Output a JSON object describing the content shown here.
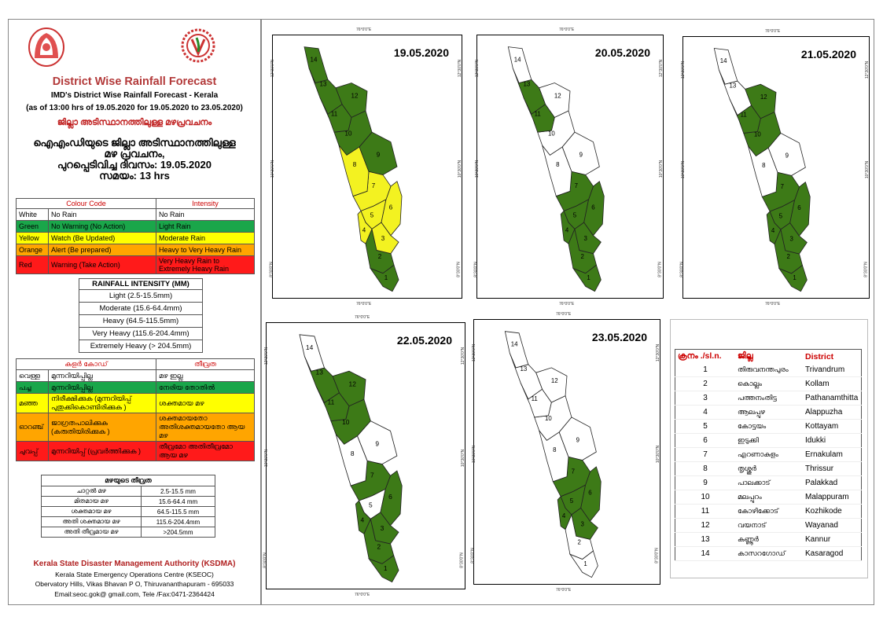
{
  "header": {
    "title": "District Wise Rainfall Forecast",
    "sub1": "IMD's District Wise Rainfall Forecast - Kerala",
    "sub2": "(as of 13:00 hrs of 19.05.2020  for 19.05.2020 to 23.05.2020)",
    "ml_title": "ജില്ലാ അടിസ്ഥാനത്തിലുള്ള മഴപ്രവചനം",
    "ml_line1": "ഐഎംഡിയുടെ ജില്ലാ  അടിസ്ഥാനത്തിലുള്ള",
    "ml_line2": "മഴ പ്രവചനം,",
    "ml_line3": "പുറപ്പെടിവിച്ച  ദിവസം: 19.05.2020",
    "ml_line4": "സമയം: 13 hrs"
  },
  "colour_code": {
    "head_code": "Colour Code",
    "head_intensity": "Intensity",
    "rows": [
      {
        "c": "White",
        "code": "No Rain",
        "intensity": "No Rain",
        "bg": "#ffffff"
      },
      {
        "c": "Green",
        "code": "No Warning (No Action)",
        "intensity": "Light Rain",
        "bg": "#1aa64a"
      },
      {
        "c": "Yellow",
        "code": "Watch (Be Updated)",
        "intensity": "Moderate Rain",
        "bg": "#ffff00"
      },
      {
        "c": "Orange",
        "code": "Alert (Be prepared)",
        "intensity": "Heavy to Very Heavy Rain",
        "bg": "#ffa500"
      },
      {
        "c": "Red",
        "code": "Warning (Take Action)",
        "intensity": "Very Heavy Rain to Extremely Heavy Rain",
        "bg": "#ff1a1a"
      }
    ]
  },
  "rain_intensity": {
    "head": "RAINFALL INTENSITY (MM)",
    "rows": [
      "Light (2.5-15.5mm)",
      "Moderate (15.6-64.4mm)",
      "Heavy (64.5-115.5mm)",
      "Very Heavy (115.6-204.4mm)",
      "Extremely Heavy (> 204.5mm)"
    ]
  },
  "ml_colour_code": {
    "head_code": "കളർ കോഡ്",
    "head_intensity": "തീവ്രത",
    "rows": [
      {
        "c": "വെള്ള",
        "code": "മുന്നറിയിപ്പില്ല",
        "intensity": "മഴ ഇല്ല",
        "bg": "#ffffff"
      },
      {
        "c": "പച്ച",
        "code": "മുന്നറിയിപ്പില്ല",
        "intensity": "നേരിയ തോതിൽ",
        "bg": "#1aa64a"
      },
      {
        "c": "മഞ്ഞ",
        "code": "നിരീക്ഷിക്കുക (മുന്നറിയിപ്പ് പുതുക്കികൊണ്ടിരിക്കുക )",
        "intensity": "ശക്തമായ മഴ",
        "bg": "#ffff00"
      },
      {
        "c": "ഓറഞ്ച്",
        "code": "ജാഗ്രതപാലിക്കുക (കരുതിയിരിക്കുക )",
        "intensity": "ശക്തമായതോ അതിശക്തമായതോ ആയ മഴ",
        "bg": "#ffa500"
      },
      {
        "c": "ചുവപ്പ്",
        "code": "മുന്നറിയിപ്പ് (പ്രവർത്തിക്കുക )",
        "intensity": "തീവ്രമോ അതിതീവ്രമോ ആയ മഴ",
        "bg": "#ff1a1a"
      }
    ]
  },
  "ml_intensity": {
    "head": "മഴയുടെ  തീവ്രത",
    "rows": [
      {
        "n": "ചാറ്റൽ  മഴ",
        "v": "2.5-15.5 mm"
      },
      {
        "n": "മിതമായ  മഴ",
        "v": "15.6-64.4 mm"
      },
      {
        "n": "ശക്തമായ  മഴ",
        "v": "64.5-115.5 mm"
      },
      {
        "n": "അതി  ശക്തമായ  മഴ",
        "v": "115.6-204.4mm"
      },
      {
        "n": "അതി  തീവ്രമായ  മഴ",
        "v": ">204.5mm"
      }
    ]
  },
  "footer": {
    "org": "Kerala State Disaster Management Authority (KSDMA)",
    "l1": "Kerala State Emergency Operations Centre (KSEOC)",
    "l2": "Obervatory Hills, Vikas Bhavan P O, Thiruvananthapuram - 695033",
    "l3": "Email:seoc.gok@ gmail.com, Tele /Fax:0471-2364424"
  },
  "maps": [
    {
      "date": "19.05.2020",
      "colors": {
        "1": "#3d7a17",
        "2": "#3d7a17",
        "3": "#f3f221",
        "4": "#f3f221",
        "5": "#f3f221",
        "6": "#f3f221",
        "7": "#f3f221",
        "8": "#f3f221",
        "9": "#3d7a17",
        "10": "#3d7a17",
        "11": "#3d7a17",
        "12": "#3d7a17",
        "13": "#3d7a17",
        "14": "#3d7a17"
      }
    },
    {
      "date": "20.05.2020",
      "colors": {
        "1": "#3d7a17",
        "2": "#3d7a17",
        "3": "#3d7a17",
        "4": "#3d7a17",
        "5": "#3d7a17",
        "6": "#3d7a17",
        "7": "#3d7a17",
        "8": "#ffffff",
        "9": "#ffffff",
        "10": "#ffffff",
        "11": "#3d7a17",
        "12": "#ffffff",
        "13": "#3d7a17",
        "14": "#ffffff"
      }
    },
    {
      "date": "21.05.2020",
      "colors": {
        "1": "#3d7a17",
        "2": "#3d7a17",
        "3": "#3d7a17",
        "4": "#3d7a17",
        "5": "#3d7a17",
        "6": "#3d7a17",
        "7": "#3d7a17",
        "8": "#ffffff",
        "9": "#ffffff",
        "10": "#3d7a17",
        "11": "#3d7a17",
        "12": "#3d7a17",
        "13": "#ffffff",
        "14": "#ffffff"
      }
    },
    {
      "date": "22.05.2020",
      "colors": {
        "1": "#3d7a17",
        "2": "#3d7a17",
        "3": "#3d7a17",
        "4": "#3d7a17",
        "5": "#ffffff",
        "6": "#3d7a17",
        "7": "#3d7a17",
        "8": "#ffffff",
        "9": "#ffffff",
        "10": "#3d7a17",
        "11": "#3d7a17",
        "12": "#3d7a17",
        "13": "#3d7a17",
        "14": "#ffffff"
      }
    },
    {
      "date": "23.05.2020",
      "colors": {
        "1": "#ffffff",
        "2": "#ffffff",
        "3": "#3d7a17",
        "4": "#3d7a17",
        "5": "#3d7a17",
        "6": "#3d7a17",
        "7": "#3d7a17",
        "8": "#ffffff",
        "9": "#ffffff",
        "10": "#ffffff",
        "11": "#ffffff",
        "12": "#ffffff",
        "13": "#ffffff",
        "14": "#ffffff"
      }
    }
  ],
  "ticks": {
    "lon": "76°0'0\"E",
    "lat1": "12°30'0\"N",
    "lat2": "10°30'0\"N",
    "lat3": "8°30'0\"N"
  },
  "districts": {
    "h_no": "ക്രനം ./sl.n.",
    "h_ml": "ജില്ല",
    "h_en": "District",
    "rows": [
      {
        "n": "1",
        "ml": "തിരുവനന്തപുരം",
        "en": "Trivandrum"
      },
      {
        "n": "2",
        "ml": "കൊല്ലം",
        "en": "Kollam"
      },
      {
        "n": "3",
        "ml": "പത്തനംതിട്ട",
        "en": "Pathanamthitta"
      },
      {
        "n": "4",
        "ml": "ആലപ്പുഴ",
        "en": "Alappuzha"
      },
      {
        "n": "5",
        "ml": "കോട്ടയം",
        "en": "Kottayam"
      },
      {
        "n": "6",
        "ml": "ഇടുക്കി",
        "en": "Idukki"
      },
      {
        "n": "7",
        "ml": "എറണാകുളം",
        "en": "Ernakulam"
      },
      {
        "n": "8",
        "ml": "തൃശ്ശൂർ",
        "en": "Thrissur"
      },
      {
        "n": "9",
        "ml": "പാലക്കാട്",
        "en": "Palakkad"
      },
      {
        "n": "10",
        "ml": "മലപ്പുറം",
        "en": "Malappuram"
      },
      {
        "n": "11",
        "ml": "കോഴിക്കോട്",
        "en": "Kozhikode"
      },
      {
        "n": "12",
        "ml": "വയനാട്",
        "en": "Wayanad"
      },
      {
        "n": "13",
        "ml": "കണ്ണൂർ",
        "en": "Kannur"
      },
      {
        "n": "14",
        "ml": "കാസറഗോഡ്",
        "en": "Kasaragod"
      }
    ]
  }
}
